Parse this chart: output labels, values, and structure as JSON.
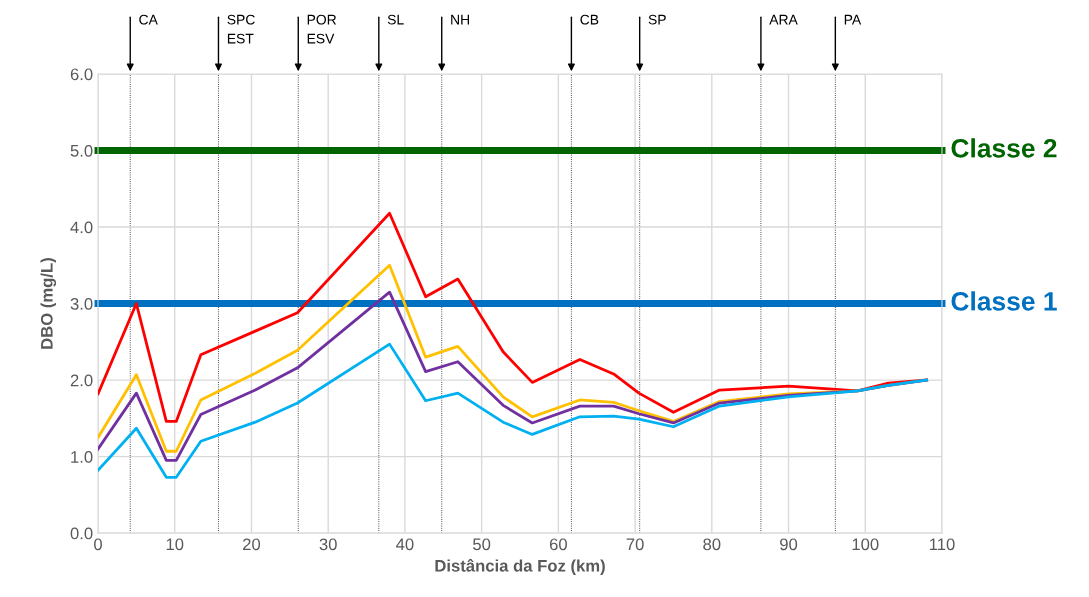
{
  "chart_data": {
    "type": "line",
    "xlabel": "Distância da Foz (km)",
    "ylabel": "DBO (mg/L)",
    "x": [
      0,
      5,
      8.9,
      10.2,
      13.4,
      20.5,
      26,
      38,
      42.7,
      46.9,
      52.8,
      56.6,
      62.8,
      67.2,
      70.5,
      75,
      81,
      90,
      99,
      103,
      108
    ],
    "series": [
      {
        "color": "#ff0000",
        "values": [
          1.82,
          3.0,
          1.46,
          1.46,
          2.33,
          2.64,
          2.88,
          4.18,
          3.09,
          3.32,
          2.37,
          1.97,
          2.27,
          2.08,
          1.83,
          1.58,
          1.87,
          1.92,
          1.86,
          1.96,
          2.0
        ]
      },
      {
        "color": "#ffc000",
        "values": [
          1.25,
          2.07,
          1.07,
          1.07,
          1.74,
          2.09,
          2.39,
          3.5,
          2.3,
          2.44,
          1.78,
          1.52,
          1.74,
          1.71,
          1.6,
          1.46,
          1.72,
          1.82,
          1.86,
          1.93,
          2.0
        ]
      },
      {
        "color": "#7030a0",
        "values": [
          1.1,
          1.83,
          0.95,
          0.95,
          1.55,
          1.87,
          2.16,
          3.15,
          2.11,
          2.24,
          1.67,
          1.44,
          1.66,
          1.66,
          1.56,
          1.44,
          1.7,
          1.8,
          1.86,
          1.93,
          2.0
        ]
      },
      {
        "color": "#00b0f0",
        "values": [
          0.82,
          1.37,
          0.73,
          0.73,
          1.2,
          1.45,
          1.7,
          2.47,
          1.73,
          1.83,
          1.45,
          1.29,
          1.52,
          1.53,
          1.49,
          1.39,
          1.66,
          1.78,
          1.86,
          1.93,
          2.0
        ]
      }
    ],
    "xlim": [
      0,
      110
    ],
    "xticks": [
      0,
      10,
      20,
      30,
      40,
      50,
      60,
      70,
      80,
      90,
      100,
      110
    ],
    "ylim": [
      0,
      6
    ],
    "yticks": [
      {
        "value": 0,
        "label": "0.0"
      },
      {
        "value": 1,
        "label": "1.0"
      },
      {
        "value": 2,
        "label": "2.0"
      },
      {
        "value": 3,
        "label": "3.0"
      },
      {
        "value": 4,
        "label": "4.0"
      },
      {
        "value": 5,
        "label": "5.0"
      },
      {
        "value": 6,
        "label": "6.0"
      }
    ],
    "ref_lines": [
      {
        "axis": "y",
        "value": 5,
        "label": "Classe 2",
        "color": "#006400"
      },
      {
        "axis": "y",
        "value": 3,
        "label": "Classe 1",
        "color": "#0070c0"
      },
      {
        "axis": "x",
        "value": 4.2,
        "label": "CA",
        "color": "#000000",
        "line_style": "dotted"
      },
      {
        "axis": "x",
        "value": 15.7,
        "label": "SPC\nEST",
        "color": "#000000",
        "line_style": "dotted"
      },
      {
        "axis": "x",
        "value": 26.1,
        "label": "POR\nESV",
        "color": "#000000",
        "line_style": "dotted"
      },
      {
        "axis": "x",
        "value": 36.6,
        "label": "SL",
        "color": "#000000",
        "line_style": "dotted"
      },
      {
        "axis": "x",
        "value": 44.8,
        "label": "NH",
        "color": "#000000",
        "line_style": "dotted"
      },
      {
        "axis": "x",
        "value": 61.7,
        "label": "CB",
        "color": "#000000",
        "line_style": "dotted"
      },
      {
        "axis": "x",
        "value": 70.6,
        "label": "SP",
        "color": "#000000",
        "line_style": "dotted"
      },
      {
        "axis": "x",
        "value": 86.4,
        "label": "ARA",
        "color": "#000000",
        "line_style": "dotted"
      },
      {
        "axis": "x",
        "value": 96.1,
        "label": "PA",
        "color": "#000000",
        "line_style": "dotted"
      }
    ],
    "grid": true,
    "legend": false,
    "marker": "none",
    "line_style": "solid"
  }
}
